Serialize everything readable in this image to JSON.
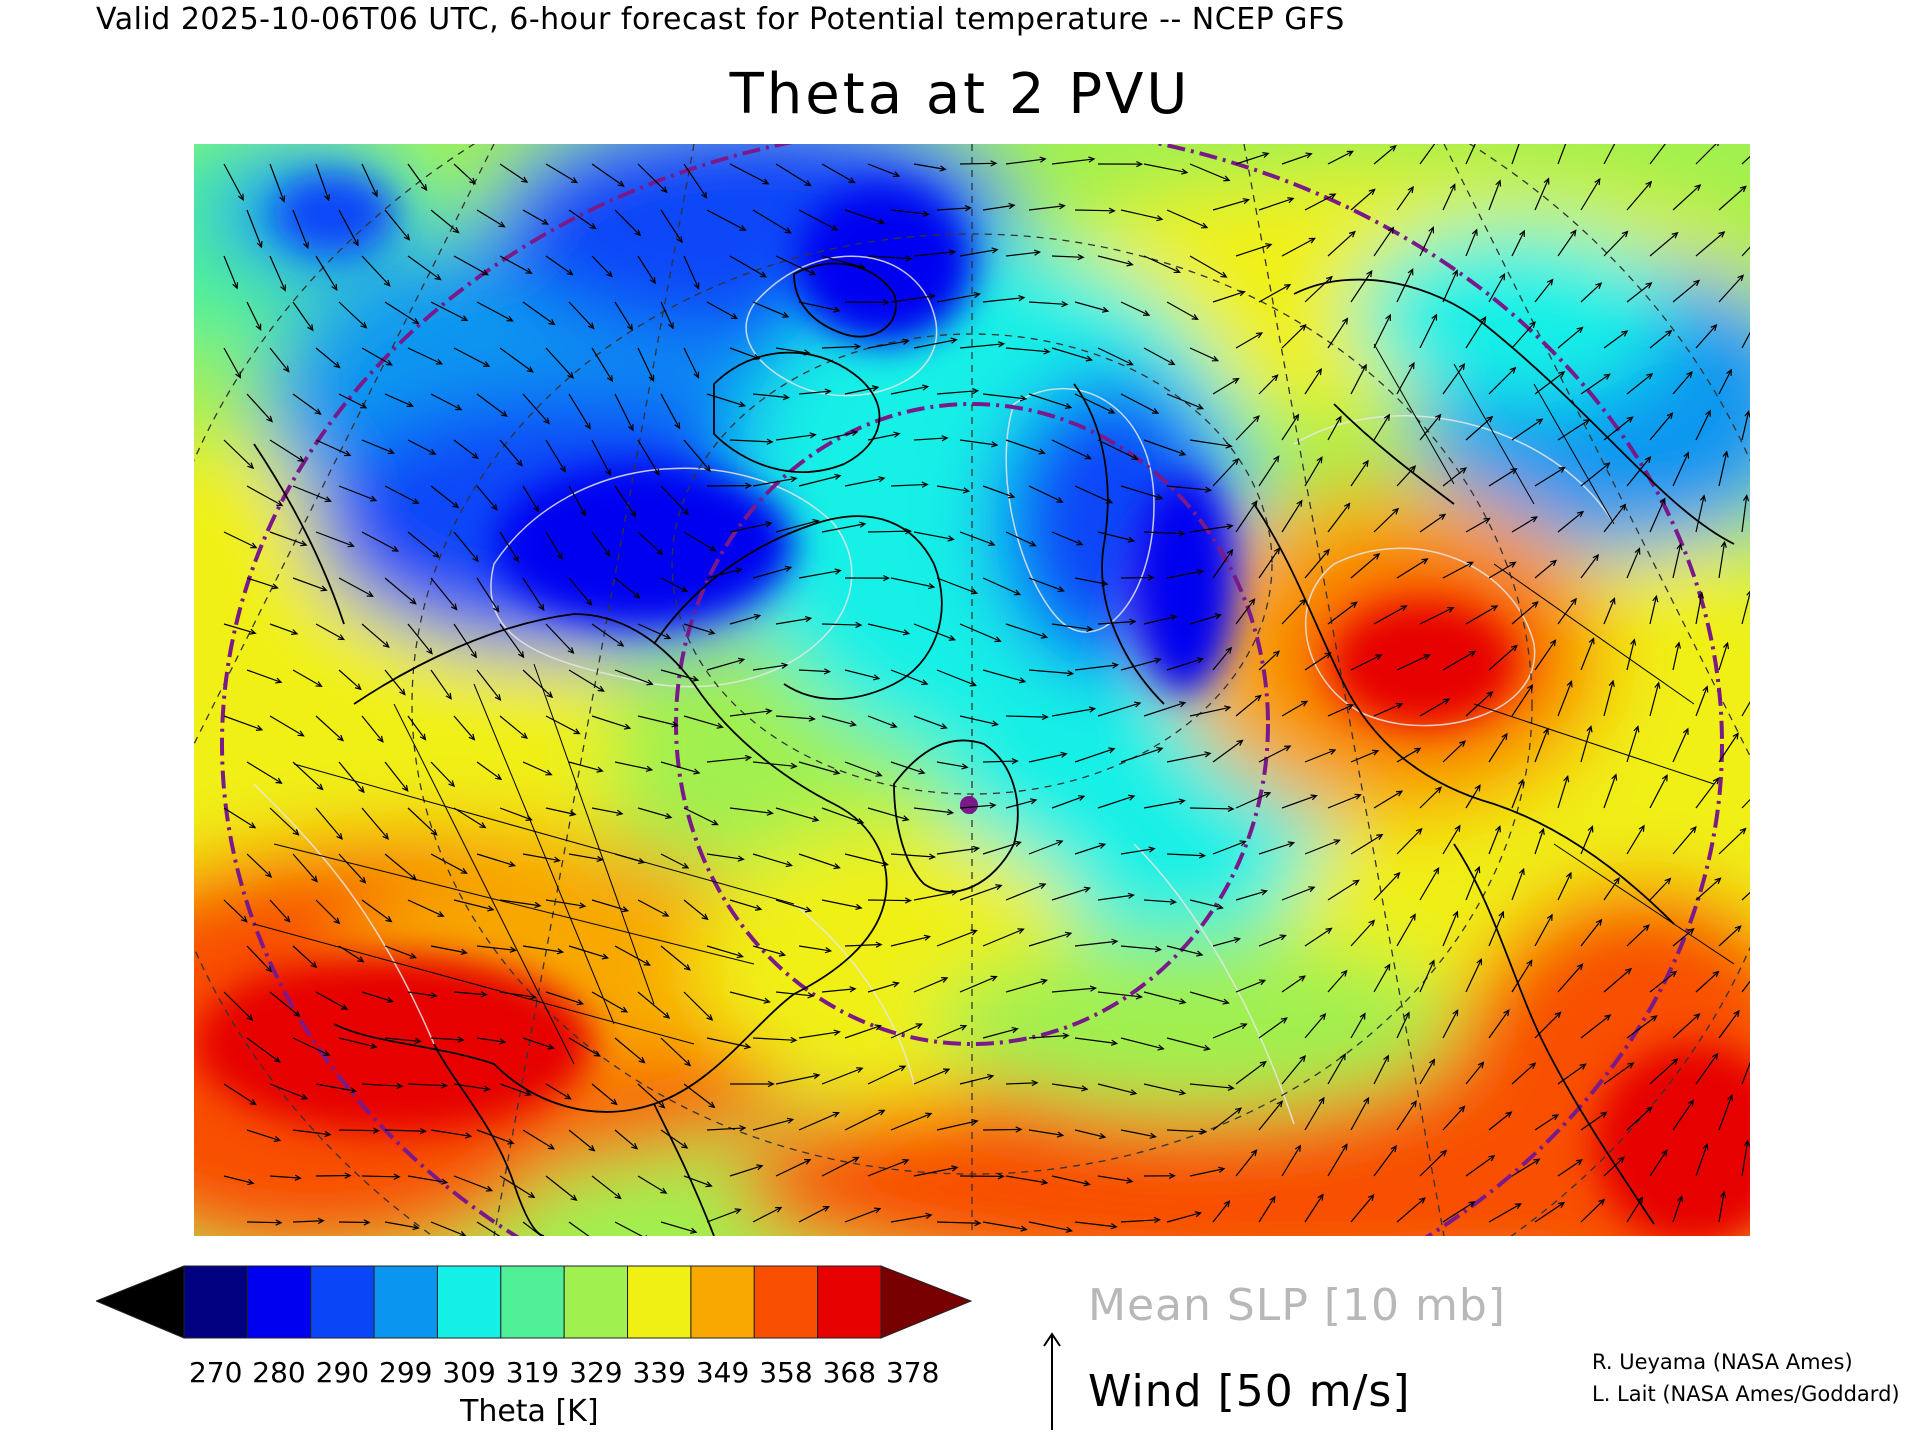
{
  "header": "Valid 2025-10-06T06 UTC, 6-hour forecast for Potential temperature -- NCEP GFS",
  "title": "Theta at 2 PVU",
  "colors": {
    "under": "#000000",
    "bins": [
      "#000080",
      "#0000f0",
      "#0a46f8",
      "#0a96f0",
      "#14f0e6",
      "#50f098",
      "#a0f050",
      "#f0f014",
      "#f8a800",
      "#f85000",
      "#e60000"
    ],
    "over": "#780000",
    "slp_contours": "#e8e8e8",
    "map_lines": "#000000",
    "reference_circles": "#7a1a8a"
  },
  "colorbar": {
    "ticks": [
      "270",
      "280",
      "290",
      "299",
      "309",
      "319",
      "329",
      "339",
      "349",
      "358",
      "368",
      "378"
    ],
    "label": "Theta [K]"
  },
  "legend": {
    "slp": "Mean SLP [10 mb]",
    "wind": "Wind [50 m/s]"
  },
  "credits": [
    "R. Ueyama (NASA Ames)",
    "L. Lait (NASA Ames/Goddard)"
  ],
  "map": {
    "projection": "polar stereographic, North Atlantic sector",
    "field": "Potential temperature at 2 PVU",
    "overlays": [
      "Mean sea level pressure contours",
      "Wind vectors",
      "Coastlines and borders",
      "Latitude/longitude grid"
    ]
  }
}
